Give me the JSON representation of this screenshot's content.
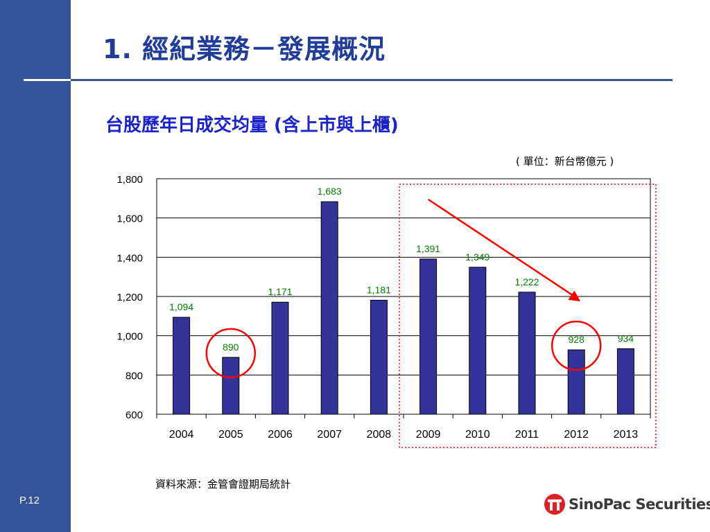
{
  "page": {
    "title": "1. 經紀業務－發展概況",
    "page_number": "P.12",
    "source": "資料來源：金管會證期局統計",
    "unit_note": "( 單位：新台幣億元 )",
    "logo_text": "SinoPac Securities"
  },
  "chart_data": {
    "type": "bar",
    "title": "台股歷年日成交均量 (含上市與上櫃)",
    "categories": [
      "2004",
      "2005",
      "2006",
      "2007",
      "2008",
      "2009",
      "2010",
      "2011",
      "2012",
      "2013"
    ],
    "values": [
      1094,
      890,
      1171,
      1683,
      1181,
      1391,
      1349,
      1222,
      928,
      934
    ],
    "data_labels": [
      "1,094",
      "890",
      "1,171",
      "1,683",
      "1,181",
      "1,391",
      "1,349",
      "1,222",
      "928",
      "934"
    ],
    "ylim": [
      600,
      1800
    ],
    "yticks": [
      600,
      800,
      1000,
      1200,
      1400,
      1600,
      1800
    ],
    "ytick_labels": [
      "600",
      "800",
      "1,000",
      "1,200",
      "1,400",
      "1,600",
      "1,800"
    ],
    "grid": true,
    "colors": {
      "bar": "#333399",
      "label": "#008000",
      "annotation": "#ff0000"
    },
    "annotations": {
      "circled_categories": [
        "2005",
        "2012"
      ],
      "highlight_range": [
        "2009",
        "2013"
      ],
      "trend_arrow": {
        "from": "2009",
        "to": "2012",
        "direction": "down"
      }
    }
  },
  "colors": {
    "sidebar": "#33549a",
    "title": "#1f3d99",
    "chart_title": "#1a22c8"
  }
}
